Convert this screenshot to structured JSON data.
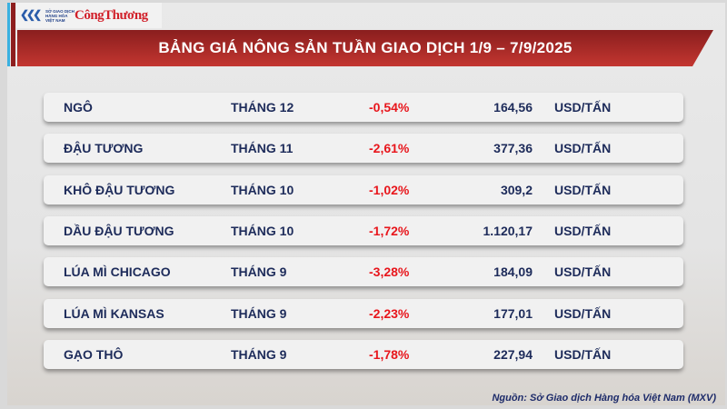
{
  "logo": {
    "org": "SỞ GIAO DỊCH HÀNG HÓA VIỆT NAM",
    "brand": "CôngThương"
  },
  "title": "BẢNG GIÁ NÔNG SẢN TUẦN GIAO DỊCH 1/9 – 7/9/2025",
  "rows": [
    {
      "name": "NGÔ",
      "month": "THÁNG 12",
      "change": "-0,54%",
      "price": "164,56",
      "unit": "USD/TẤN"
    },
    {
      "name": "ĐẬU TƯƠNG",
      "month": "THÁNG 11",
      "change": "-2,61%",
      "price": "377,36",
      "unit": "USD/TẤN"
    },
    {
      "name": "KHÔ ĐẬU TƯƠNG",
      "month": "THÁNG 10",
      "change": "-1,02%",
      "price": "309,2",
      "unit": "USD/TẤN"
    },
    {
      "name": "DẦU ĐẬU TƯƠNG",
      "month": "THÁNG 10",
      "change": "-1,72%",
      "price": "1.120,17",
      "unit": "USD/TẤN"
    },
    {
      "name": "LÚA MÌ CHICAGO",
      "month": "THÁNG 9",
      "change": "-3,28%",
      "price": "184,09",
      "unit": "USD/TẤN"
    },
    {
      "name": "LÚA MÌ KANSAS",
      "month": "THÁNG 9",
      "change": "-2,23%",
      "price": "177,01",
      "unit": "USD/TẤN"
    },
    {
      "name": "GẠO THÔ",
      "month": "THÁNG 9",
      "change": "-1,78%",
      "price": "227,94",
      "unit": "USD/TẤN"
    }
  ],
  "source": "Nguồn: Sở Giao dịch Hàng hóa Việt Nam (MXV)",
  "colors": {
    "banner": "#b22e2a",
    "negative": "#e8161c",
    "text": "#1d2b5a"
  }
}
